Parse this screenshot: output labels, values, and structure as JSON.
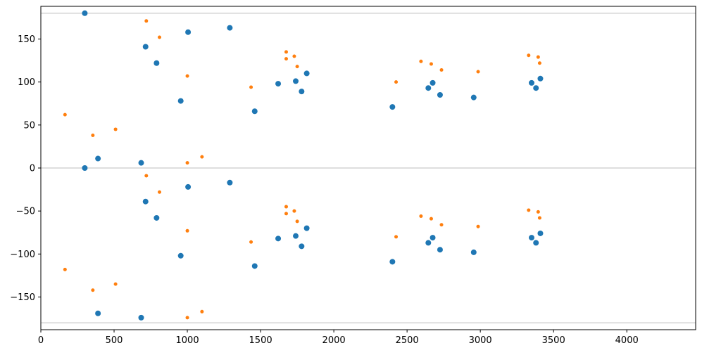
{
  "chart_data": {
    "type": "scatter",
    "title": "",
    "xlabel": "",
    "ylabel": "",
    "xlim": [
      0,
      4470
    ],
    "ylim": [
      -188,
      188
    ],
    "xticks": [
      0,
      500,
      1000,
      1500,
      2000,
      2500,
      3000,
      3500,
      4000
    ],
    "yticks": [
      -150,
      -100,
      -50,
      0,
      50,
      100,
      150
    ],
    "xtick_labels": [
      "0",
      "500",
      "1000",
      "1500",
      "2000",
      "2500",
      "3000",
      "3500",
      "4000"
    ],
    "ytick_labels": [
      "−150",
      "−100",
      "−50",
      "0",
      "50",
      "100",
      "150"
    ],
    "grid": false,
    "legend": "none",
    "reference_lines": [
      {
        "y": 180,
        "color": "#d3d3d3"
      },
      {
        "y": 0,
        "color": "#d3d3d3"
      },
      {
        "y": -180,
        "color": "#d3d3d3"
      }
    ],
    "series": [
      {
        "color": "#1f77b4",
        "marker_radius": 4,
        "points": [
          [
            300,
            180
          ],
          [
            300,
            0
          ],
          [
            390,
            11
          ],
          [
            390,
            -169
          ],
          [
            685,
            6
          ],
          [
            685,
            -174
          ],
          [
            715,
            141
          ],
          [
            715,
            -39
          ],
          [
            790,
            122
          ],
          [
            790,
            -58
          ],
          [
            955,
            78
          ],
          [
            955,
            -102
          ],
          [
            1005,
            158
          ],
          [
            1005,
            -22
          ],
          [
            1290,
            163
          ],
          [
            1290,
            -17
          ],
          [
            1460,
            66
          ],
          [
            1460,
            -114
          ],
          [
            1620,
            98
          ],
          [
            1620,
            -82
          ],
          [
            1740,
            101
          ],
          [
            1740,
            -79
          ],
          [
            1780,
            89
          ],
          [
            1780,
            -91
          ],
          [
            1815,
            110
          ],
          [
            1815,
            -70
          ],
          [
            2400,
            71
          ],
          [
            2400,
            -109
          ],
          [
            2645,
            93
          ],
          [
            2645,
            -87
          ],
          [
            2675,
            99
          ],
          [
            2675,
            -81
          ],
          [
            2725,
            85
          ],
          [
            2725,
            -95
          ],
          [
            2955,
            82
          ],
          [
            2955,
            -98
          ],
          [
            3350,
            99
          ],
          [
            3350,
            -81
          ],
          [
            3380,
            93
          ],
          [
            3380,
            -87
          ],
          [
            3410,
            104
          ],
          [
            3410,
            -76
          ]
        ]
      },
      {
        "color": "#ff7f0e",
        "marker_radius": 2.5,
        "points": [
          [
            165,
            62
          ],
          [
            165,
            -118
          ],
          [
            355,
            38
          ],
          [
            355,
            -142
          ],
          [
            510,
            45
          ],
          [
            510,
            -135
          ],
          [
            720,
            171
          ],
          [
            720,
            -9
          ],
          [
            810,
            152
          ],
          [
            810,
            -28
          ],
          [
            1000,
            107
          ],
          [
            1000,
            -73
          ],
          [
            1000,
            6
          ],
          [
            1000,
            -174
          ],
          [
            1100,
            13
          ],
          [
            1100,
            -167
          ],
          [
            1435,
            94
          ],
          [
            1435,
            -86
          ],
          [
            1675,
            135
          ],
          [
            1675,
            -45
          ],
          [
            1675,
            127
          ],
          [
            1675,
            -53
          ],
          [
            1730,
            130
          ],
          [
            1730,
            -50
          ],
          [
            1750,
            118
          ],
          [
            1750,
            -62
          ],
          [
            2425,
            100
          ],
          [
            2425,
            -80
          ],
          [
            2595,
            124
          ],
          [
            2595,
            -56
          ],
          [
            2665,
            121
          ],
          [
            2665,
            -59
          ],
          [
            2735,
            114
          ],
          [
            2735,
            -66
          ],
          [
            2985,
            112
          ],
          [
            2985,
            -68
          ],
          [
            3330,
            131
          ],
          [
            3330,
            -49
          ],
          [
            3395,
            129
          ],
          [
            3395,
            -51
          ],
          [
            3405,
            122
          ],
          [
            3405,
            -58
          ]
        ]
      }
    ]
  }
}
